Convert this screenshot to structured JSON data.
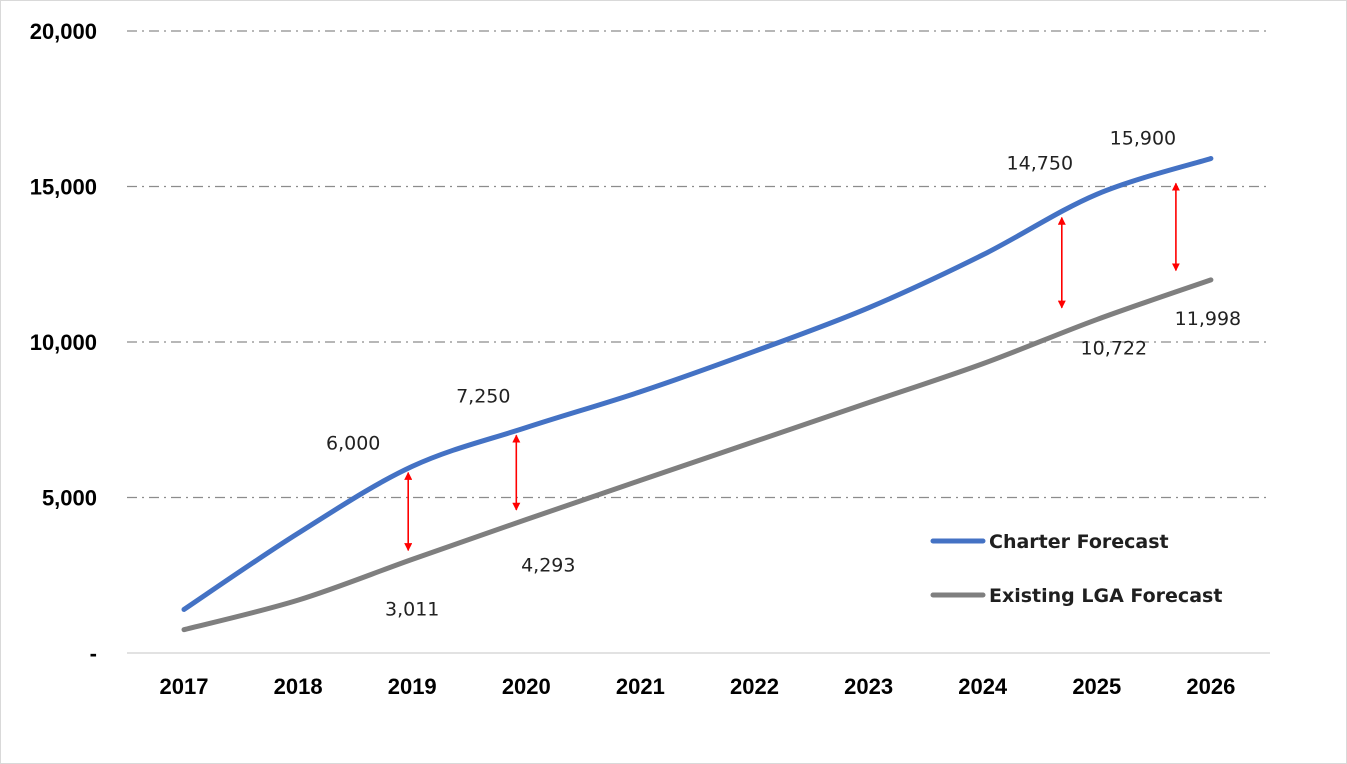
{
  "chart_data": {
    "type": "line",
    "title": "",
    "xlabel": "",
    "ylabel": "",
    "categories": [
      "2017",
      "2018",
      "2019",
      "2020",
      "2021",
      "2022",
      "2023",
      "2024",
      "2025",
      "2026"
    ],
    "ylim": [
      0,
      20000
    ],
    "y_ticks": [
      {
        "value": 0,
        "label": "-"
      },
      {
        "value": 5000,
        "label": "5,000"
      },
      {
        "value": 10000,
        "label": "10,000"
      },
      {
        "value": 15000,
        "label": "15,000"
      },
      {
        "value": 20000,
        "label": "20,000"
      }
    ],
    "grid": "horizontal dash-dot",
    "legend_position": "bottom-right",
    "series": [
      {
        "name": "Charter Forecast",
        "color": "#4472c4",
        "values": [
          1400,
          3850,
          6000,
          7250,
          8400,
          9700,
          11100,
          12800,
          14750,
          15900
        ]
      },
      {
        "name": "Existing LGA Forecast",
        "color": "#7f7f7f",
        "values": [
          750,
          1700,
          3011,
          4293,
          5550,
          6800,
          8050,
          9300,
          10722,
          11998
        ]
      }
    ],
    "data_labels": [
      {
        "series": "Charter Forecast",
        "category": "2019",
        "text": "6,000"
      },
      {
        "series": "Charter Forecast",
        "category": "2020",
        "text": "7,250"
      },
      {
        "series": "Charter Forecast",
        "category": "2025",
        "text": "14,750"
      },
      {
        "series": "Charter Forecast",
        "category": "2026",
        "text": "15,900"
      },
      {
        "series": "Existing LGA Forecast",
        "category": "2019",
        "text": "3,011"
      },
      {
        "series": "Existing LGA Forecast",
        "category": "2020",
        "text": "4,293"
      },
      {
        "series": "Existing LGA Forecast",
        "category": "2025",
        "text": "10,722"
      },
      {
        "series": "Existing LGA Forecast",
        "category": "2026",
        "text": "11,998"
      }
    ],
    "gap_arrows": [
      {
        "category": "2019",
        "from": 3300,
        "to": 5800,
        "color": "#ff0000"
      },
      {
        "category": "2020",
        "from": 4600,
        "to": 7000,
        "color": "#ff0000"
      },
      {
        "category": "2025",
        "from": 11100,
        "to": 14000,
        "color": "#ff0000"
      },
      {
        "category": "2026",
        "from": 12300,
        "to": 15100,
        "color": "#ff0000"
      }
    ]
  }
}
